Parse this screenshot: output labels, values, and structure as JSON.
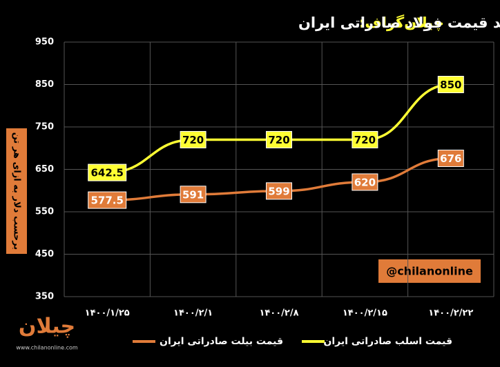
{
  "chart_data": {
    "type": "line",
    "brand": "چیلان‌گراف:",
    "title": "روند قیمت فولاد صادراتی ایران",
    "y_label": "برحسب دلار به ازای هر تن",
    "watermark": "@chilanonline",
    "logo_text": "چیلان",
    "website": "www.chilanonline.com",
    "categories": [
      "۱۴۰۰/۱/۲۵",
      "۱۴۰۰/۲/۱",
      "۱۴۰۰/۲/۸",
      "۱۴۰۰/۲/۱۵",
      "۱۴۰۰/۲/۲۲"
    ],
    "series": [
      {
        "name": "قیمت اسلب صادراتی ایران",
        "color": "#ffff33",
        "label_text_color": "#000000",
        "values": [
          642.5,
          720,
          720,
          720,
          850
        ]
      },
      {
        "name": "قیمت بیلت صادراتی ایران",
        "color": "#e07b39",
        "label_text_color": "#ffffff",
        "values": [
          577.5,
          591,
          599,
          620,
          676
        ]
      }
    ],
    "ylim": [
      350,
      950
    ],
    "yticks": [
      350,
      450,
      550,
      650,
      750,
      850,
      950
    ],
    "grid": true
  }
}
